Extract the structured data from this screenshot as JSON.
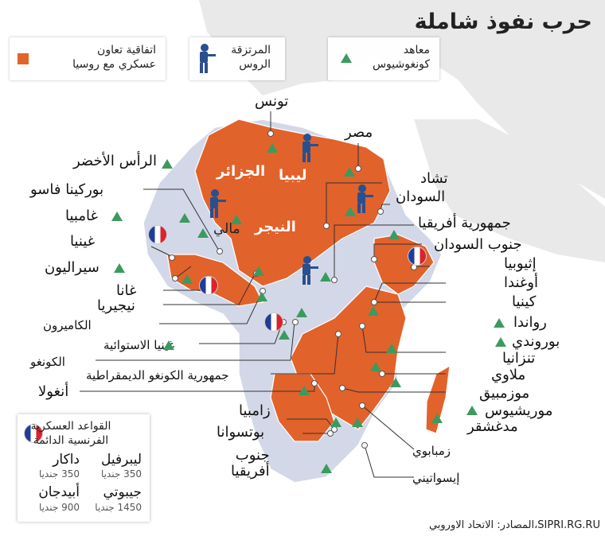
{
  "title": "حرب نفوذ شاملة",
  "legend": {
    "treaty": "اتفاقية تعاون\nعسكري مع روسيا",
    "mercenaries": "المرتزقة\nالروس",
    "peacekeeping": "معاهد\nكونغوشيوس"
  },
  "map_labels": {
    "algeria": "الجزائر",
    "libya": "ليبيا",
    "niger": "النيجر",
    "mali": "مالي"
  },
  "countries": {
    "tunisia": "تونس",
    "egypt": "مصر",
    "cape_verde": "الرأس الأخضر",
    "burkina": "بوركينا فاسو",
    "gambia": "غامبيا",
    "guinea": "غينيا",
    "sierra_leone": "سيراليون",
    "ghana": "غانا",
    "nigeria": "نيجيريا",
    "cameroon": "الكاميرون",
    "eq_guinea": "غينيا الاستوائية",
    "congo": "الكونغو",
    "drc": "جمهورية الكونغو الديمقراطية",
    "angola": "أنغولا",
    "chad": "تشاد",
    "sudan": "السودان",
    "car": "جمهورية أفريقيا",
    "south_sudan": "جنوب السودان",
    "ethiopia": "إثيوبيا",
    "uganda": "أوغندا",
    "kenya": "كينيا",
    "rwanda": "رواندا",
    "burundi": "بوروندي",
    "tanzania": "تنزانيا",
    "malawi": "ملاوي",
    "mozambique": "موزمبيق",
    "mauritius": "موريشيوس",
    "madagascar": "مدغشقر",
    "zambia": "زامبيا",
    "botswana": "بوتسوانا",
    "south_africa": "جنوب\nأفريقيا",
    "zimbabwe": "زمبابوي",
    "eswatini": "إيسواتيني"
  },
  "bases_box": {
    "heading": "القواعد العسكرية\nالفرنسية الدائمة",
    "bases": [
      {
        "name": "ليبرفيل",
        "troops": "350 جنديا"
      },
      {
        "name": "داكار",
        "troops": "350 جنديا"
      },
      {
        "name": "جيبوتي",
        "troops": "1450 جنديا"
      },
      {
        "name": "أبيدجان",
        "troops": "900 جنديا"
      }
    ]
  },
  "source": "المصادر: الاتحاد الاوروبي،SIPRI.RG.RU",
  "colors": {
    "treaty": "#e2622b",
    "other_africa": "#d3d8e8",
    "other_land": "#e9e9e9",
    "sea": "#ffffff",
    "green": "#3c9a5f",
    "soldier": "#2a4f8f"
  }
}
